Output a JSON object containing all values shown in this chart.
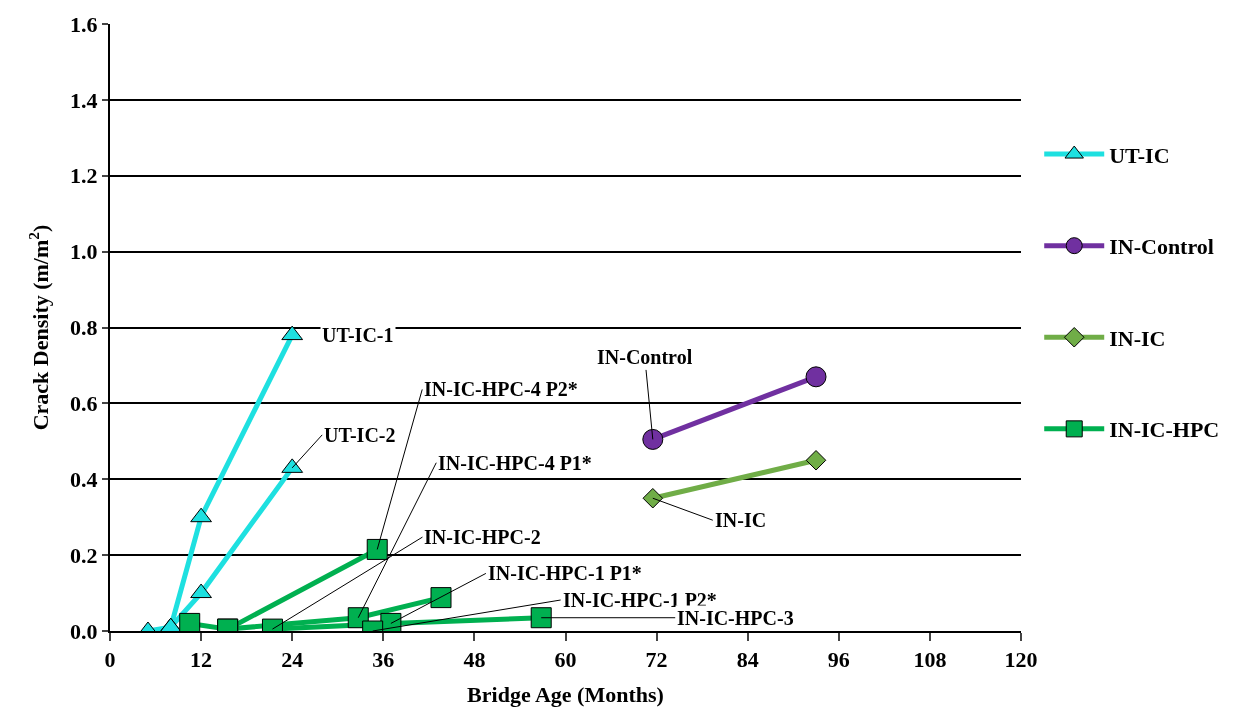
{
  "chart_data": {
    "type": "line",
    "xlabel": "Bridge Age (Months)",
    "ylabel": "Crack Density (m/m$^{2}$)",
    "xlim": [
      0,
      120
    ],
    "xticks": [
      0,
      12,
      24,
      36,
      48,
      60,
      72,
      84,
      96,
      108,
      120
    ],
    "ylim": [
      0,
      1.6
    ],
    "yticks": [
      {
        "value": 0,
        "label": "0.0"
      },
      {
        "value": 0.2,
        "label": "0.2"
      },
      {
        "value": 0.4,
        "label": "0.4"
      },
      {
        "value": 0.6,
        "label": "0.6"
      },
      {
        "value": 0.8,
        "label": "0.8"
      },
      {
        "value": 1,
        "label": "1.0"
      },
      {
        "value": 1.2,
        "label": "1.2"
      },
      {
        "value": 1.4,
        "label": "1.4"
      },
      {
        "value": 1.6,
        "label": "1.6"
      }
    ],
    "grid": "y",
    "legend": "right",
    "series": [
      {
        "name": "UT-IC",
        "color": "#1ee0e0",
        "marker": "triangle",
        "x": [
          5,
          8,
          12,
          24,
          null,
          8,
          12,
          24
        ],
        "values": [
          0,
          0.01,
          0.3,
          0.78,
          null,
          0.01,
          0.1,
          0.43
        ]
      },
      {
        "name": "IN-Control",
        "color": "#7030a0",
        "marker": "circle",
        "x": [
          71.5,
          93
        ],
        "values": [
          0.505,
          0.67
        ]
      },
      {
        "name": "IN-IC",
        "color": "#70ad47",
        "marker": "diamond",
        "x": [
          71.5,
          93
        ],
        "values": [
          0.35,
          0.45
        ]
      },
      {
        "name": "IN-IC-HPC",
        "color": "#00b050",
        "marker": "square",
        "x": [
          10.5,
          15.5,
          35.2,
          null,
          15.5,
          32.7,
          43.6,
          null,
          21.4,
          37,
          56.8,
          null,
          34.6
        ],
        "values": [
          0.02,
          0.005,
          0.215,
          null,
          0.005,
          0.035,
          0.088,
          null,
          0.005,
          0.02,
          0.035,
          null,
          0
        ]
      }
    ],
    "annotations": [
      {
        "text": "UT-IC-1",
        "x": 24,
        "y": 0.78
      },
      {
        "text": "IN-IC-HPC-4 P2*",
        "x": 35.2,
        "y": 0.215
      },
      {
        "text": "UT-IC-2",
        "x": 24,
        "y": 0.43
      },
      {
        "text": "IN-IC-HPC-4 P1*",
        "x": 32.7,
        "y": 0.035
      },
      {
        "text": "IN-IC-HPC-2",
        "x": 21.4,
        "y": 0.005
      },
      {
        "text": "IN-IC-HPC-1 P1*",
        "x": 37,
        "y": 0.02
      },
      {
        "text": "IN-IC-HPC-1 P2*",
        "x": 34.6,
        "y": 0
      },
      {
        "text": "IN-IC-HPC-3",
        "x": 56.8,
        "y": 0.035
      },
      {
        "text": "IN-Control",
        "x": 71.5,
        "y": 0.505
      },
      {
        "text": "IN-IC",
        "x": 71.5,
        "y": 0.35
      }
    ]
  }
}
